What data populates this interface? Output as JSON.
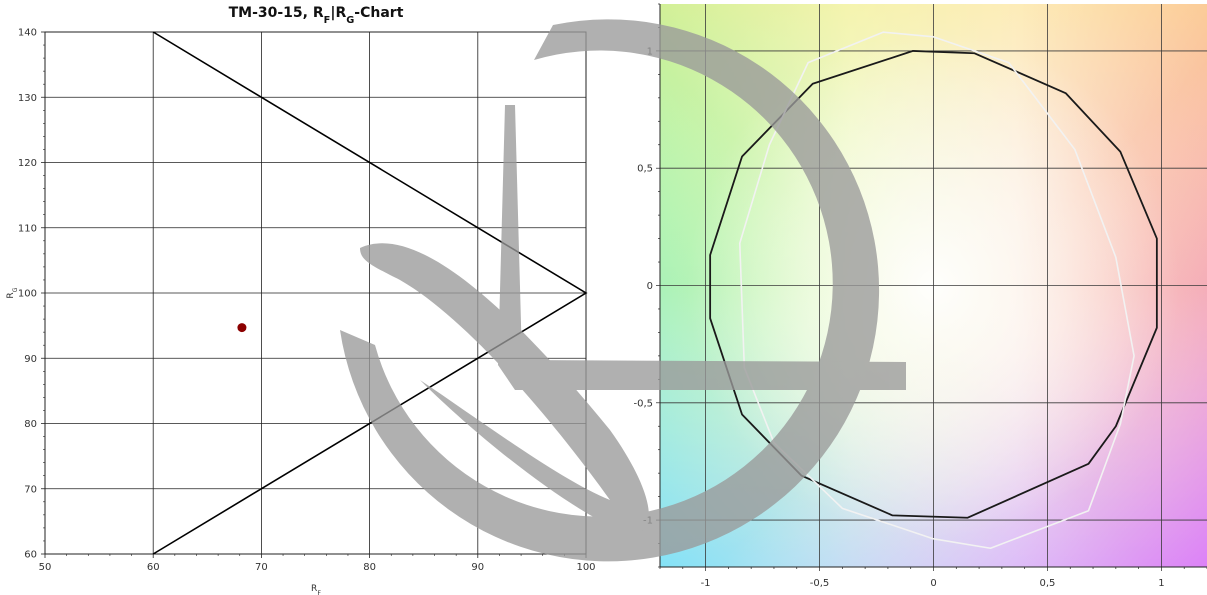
{
  "chart_data": [
    {
      "type": "scatter",
      "title": "TM-30-15, R",
      "title_parts": {
        "r1": "R",
        "s1": "F",
        "sep": "|",
        "r2": "R",
        "s2": "G",
        "suffix": "-Chart",
        "prefix": "TM-30-15, "
      },
      "xlabel": {
        "main": "R",
        "sub": "F"
      },
      "ylabel": {
        "main": "R",
        "sub": "G"
      },
      "xlim": [
        50,
        100
      ],
      "ylim": [
        60,
        140
      ],
      "xticks": [
        "50",
        "60",
        "70",
        "80",
        "90",
        "100"
      ],
      "yticks": [
        "60",
        "70",
        "80",
        "90",
        "100",
        "110",
        "120",
        "130",
        "140"
      ],
      "grid": true,
      "gamut_triangle": [
        [
          60,
          140
        ],
        [
          100,
          100
        ],
        [
          60,
          60
        ]
      ],
      "points": [
        {
          "x": 68.2,
          "y": 94.7
        }
      ],
      "point_color": "#8b0000"
    },
    {
      "type": "line",
      "xlim": [
        -1.2,
        1.2
      ],
      "ylim": [
        -1.2,
        1.2
      ],
      "xticks": [
        "-1",
        "-0,5",
        "0",
        "0,5",
        "1"
      ],
      "yticks": [
        "-1",
        "-0,5",
        "0",
        "0,5",
        "1"
      ],
      "xtick_values": [
        -1,
        -0.5,
        0,
        0.5,
        1
      ],
      "ytick_values": [
        -1,
        -0.5,
        0,
        0.5,
        1
      ],
      "grid": true,
      "series": [
        {
          "color": "#1a1a1a",
          "points": [
            [
              -0.09,
              1.0
            ],
            [
              0.18,
              0.99
            ],
            [
              0.58,
              0.82
            ],
            [
              0.82,
              0.57
            ],
            [
              0.98,
              0.2
            ],
            [
              0.98,
              -0.18
            ],
            [
              0.8,
              -0.6
            ],
            [
              0.68,
              -0.76
            ],
            [
              0.15,
              -0.99
            ],
            [
              -0.18,
              -0.98
            ],
            [
              -0.58,
              -0.81
            ],
            [
              -0.84,
              -0.55
            ],
            [
              -0.98,
              -0.14
            ],
            [
              -0.98,
              0.13
            ],
            [
              -0.84,
              0.55
            ],
            [
              -0.53,
              0.86
            ]
          ]
        },
        {
          "color": "#f2f2f2",
          "points": [
            [
              -0.22,
              1.08
            ],
            [
              0.0,
              1.06
            ],
            [
              0.33,
              0.95
            ],
            [
              0.62,
              0.58
            ],
            [
              0.8,
              0.12
            ],
            [
              0.88,
              -0.3
            ],
            [
              0.82,
              -0.59
            ],
            [
              0.68,
              -0.96
            ],
            [
              0.25,
              -1.12
            ],
            [
              -0.0,
              -1.08
            ],
            [
              -0.4,
              -0.95
            ],
            [
              -0.7,
              -0.67
            ],
            [
              -0.83,
              -0.35
            ],
            [
              -0.85,
              0.18
            ],
            [
              -0.72,
              0.6
            ],
            [
              -0.55,
              0.95
            ]
          ]
        }
      ]
    }
  ]
}
